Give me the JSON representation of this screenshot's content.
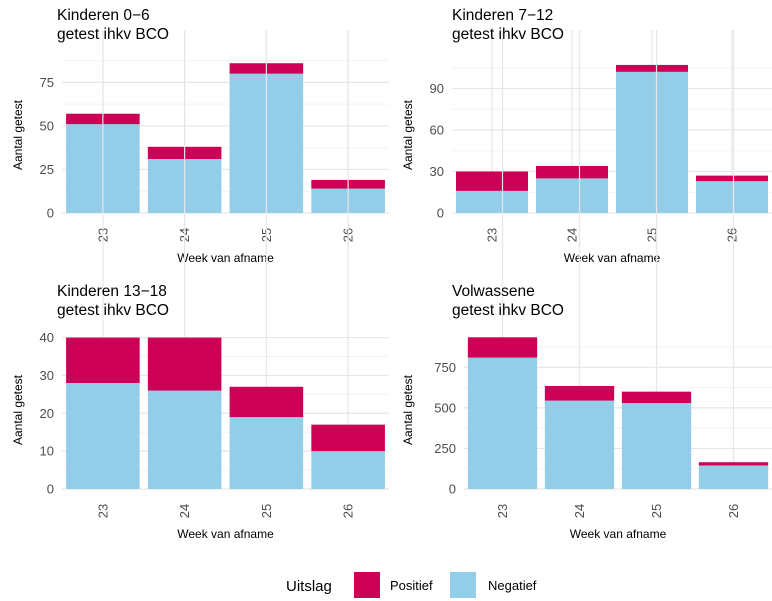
{
  "colors": {
    "positive": "#cc0055",
    "negative": "#93cde8",
    "grid_major": "#e6e6e6",
    "grid_minor": "#f3f3f3"
  },
  "legend": {
    "title": "Uitslag",
    "items": [
      {
        "label": "Positief",
        "color": "#cc0055"
      },
      {
        "label": "Negatief",
        "color": "#93cde8"
      }
    ]
  },
  "chart_data": [
    {
      "type": "bar",
      "stacked": true,
      "title_lines": [
        "Kinderen 0−6",
        "getest ihkv BCO"
      ],
      "xlabel": "Week van afname",
      "ylabel": "Aantal getest",
      "categories": [
        "23",
        "24",
        "25",
        "26"
      ],
      "series": [
        {
          "name": "Negatief",
          "values": [
            51,
            31,
            80,
            14
          ]
        },
        {
          "name": "Positief",
          "values": [
            6,
            7,
            6,
            5
          ]
        }
      ],
      "ylim": [
        0,
        89
      ],
      "yticks": [
        0,
        25,
        50,
        75
      ],
      "grid": true
    },
    {
      "type": "bar",
      "stacked": true,
      "title_lines": [
        "Kinderen 7−12",
        "getest ihkv BCO"
      ],
      "xlabel": "Week van afname",
      "ylabel": "Aantal getest",
      "categories": [
        "23",
        "24",
        "25",
        "26"
      ],
      "series": [
        {
          "name": "Negatief",
          "values": [
            16,
            25,
            102,
            23
          ]
        },
        {
          "name": "Positief",
          "values": [
            14,
            9,
            5,
            4
          ]
        }
      ],
      "ylim": [
        0,
        112
      ],
      "yticks": [
        0,
        30,
        60,
        90
      ],
      "grid": true
    },
    {
      "type": "bar",
      "stacked": true,
      "title_lines": [
        "Kinderen 13−18",
        "getest ihkv BCO"
      ],
      "xlabel": "Week van afname",
      "ylabel": "Aantal getest",
      "categories": [
        "23",
        "24",
        "25",
        "26"
      ],
      "series": [
        {
          "name": "Negatief",
          "values": [
            28,
            26,
            19,
            10
          ]
        },
        {
          "name": "Positief",
          "values": [
            12,
            14,
            8,
            7
          ]
        }
      ],
      "ylim": [
        0,
        42
      ],
      "yticks": [
        0,
        10,
        20,
        30,
        40
      ],
      "grid": true
    },
    {
      "type": "bar",
      "stacked": true,
      "title_lines": [
        "Volwassene",
        "getest ihkv BCO"
      ],
      "xlabel": "Week van afname",
      "ylabel": "Aantal getest",
      "categories": [
        "23",
        "24",
        "25",
        "26"
      ],
      "series": [
        {
          "name": "Negatief",
          "values": [
            810,
            545,
            530,
            145
          ]
        },
        {
          "name": "Positief",
          "values": [
            125,
            90,
            70,
            20
          ]
        }
      ],
      "ylim": [
        0,
        980
      ],
      "yticks": [
        0,
        250,
        500,
        750
      ],
      "grid": true
    }
  ]
}
